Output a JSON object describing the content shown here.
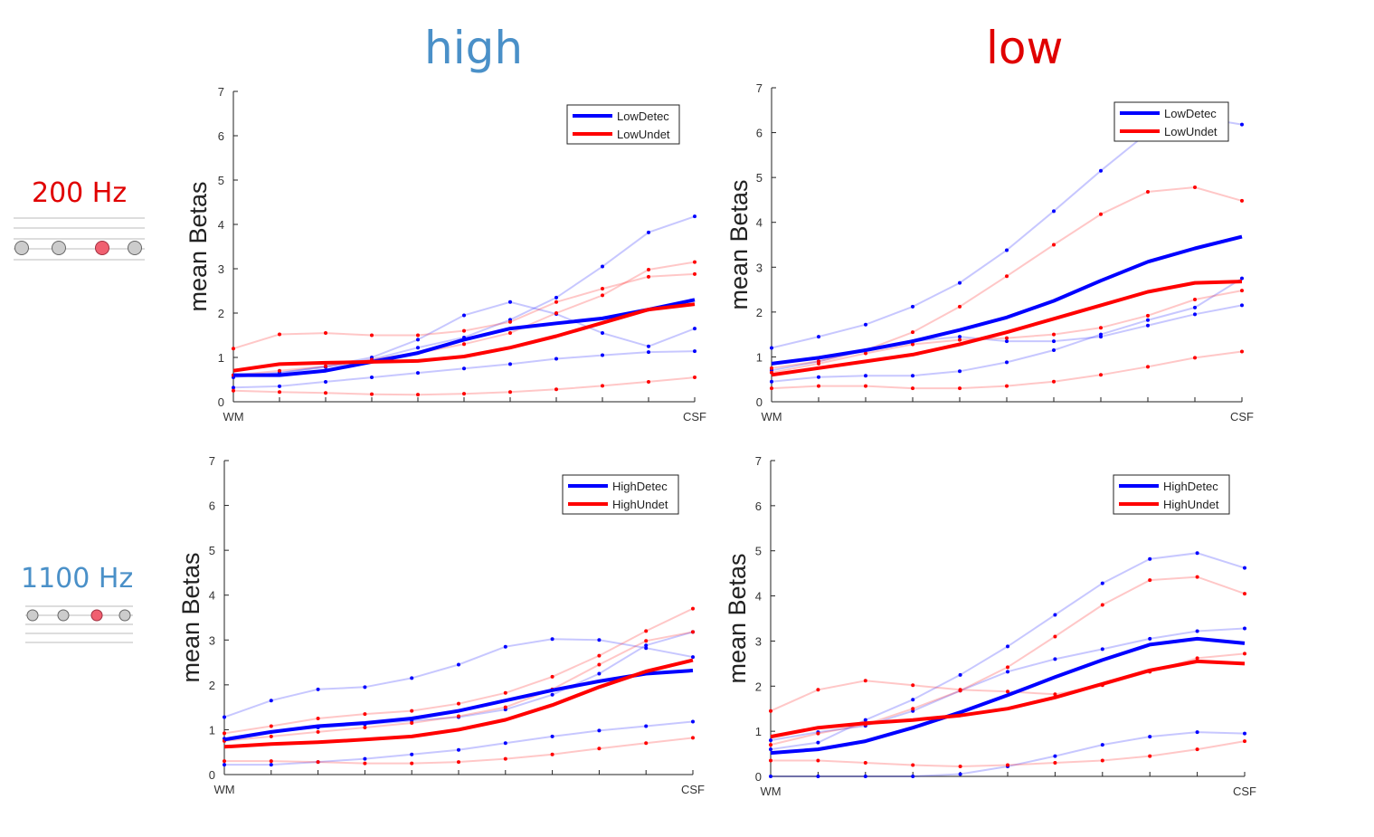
{
  "column_titles": {
    "high": "high",
    "low": "low"
  },
  "row_labels": {
    "top": "200 Hz",
    "bottom": "1100 Hz"
  },
  "colors": {
    "blue": "#0000ff",
    "red": "#ff0000",
    "high_title": "#4a90c8",
    "low_title": "#e00000",
    "label_200": "#e00000",
    "label_1100": "#4a90c8",
    "staff_line": "#bbbbbb",
    "note_gray": "#cccccc",
    "note_red": "#f06070"
  },
  "icon_names": {
    "staff_200": "music-staff-icon",
    "staff_1100": "music-staff-icon"
  },
  "chart_data": [
    {
      "id": "high-200",
      "type": "line",
      "ylabel": "mean Betas",
      "ylim": [
        0,
        7
      ],
      "yticks": [
        "0",
        "1",
        "2",
        "3",
        "4",
        "5",
        "6",
        "7"
      ],
      "xtick_labels": {
        "first": "WM",
        "last": "CSF"
      },
      "x": [
        1,
        2,
        3,
        4,
        5,
        6,
        7,
        8,
        9,
        10,
        11
      ],
      "legend": [
        "LowDetec",
        "LowUndet"
      ],
      "series": [
        {
          "name": "LowDetec",
          "color": "blue",
          "width": "bold",
          "values": [
            0.6,
            0.6,
            0.7,
            0.9,
            1.1,
            1.4,
            1.65,
            1.77,
            1.88,
            2.08,
            2.3
          ]
        },
        {
          "name": "LowUndet",
          "color": "red",
          "width": "bold",
          "values": [
            0.7,
            0.85,
            0.88,
            0.9,
            0.92,
            1.02,
            1.22,
            1.48,
            1.78,
            2.08,
            2.2
          ]
        },
        {
          "name": "subject-blue-1",
          "color": "blue",
          "width": "thin",
          "values": [
            0.6,
            0.65,
            0.8,
            1.0,
            1.4,
            1.95,
            2.25,
            1.98,
            1.55,
            1.25,
            1.65
          ]
        },
        {
          "name": "subject-blue-2",
          "color": "blue",
          "width": "thin",
          "values": [
            0.55,
            0.65,
            0.78,
            0.95,
            1.22,
            1.45,
            1.85,
            2.35,
            3.05,
            3.82,
            4.18
          ]
        },
        {
          "name": "subject-blue-3",
          "color": "blue",
          "width": "thin",
          "values": [
            0.32,
            0.35,
            0.45,
            0.55,
            0.65,
            0.75,
            0.85,
            0.97,
            1.05,
            1.12,
            1.14
          ]
        },
        {
          "name": "subject-red-1",
          "color": "red",
          "width": "thin",
          "values": [
            1.2,
            1.52,
            1.55,
            1.5,
            1.5,
            1.6,
            1.8,
            2.25,
            2.55,
            2.82,
            2.88
          ]
        },
        {
          "name": "subject-red-2",
          "color": "red",
          "width": "thin",
          "values": [
            0.6,
            0.7,
            0.8,
            0.95,
            1.1,
            1.3,
            1.55,
            2.0,
            2.4,
            2.98,
            3.15
          ]
        },
        {
          "name": "subject-red-3",
          "color": "red",
          "width": "thin",
          "values": [
            0.25,
            0.22,
            0.2,
            0.17,
            0.16,
            0.18,
            0.22,
            0.28,
            0.36,
            0.45,
            0.55
          ]
        }
      ]
    },
    {
      "id": "low-200",
      "type": "line",
      "ylabel": "mean Betas",
      "ylim": [
        0,
        7
      ],
      "yticks": [
        "0",
        "1",
        "2",
        "3",
        "4",
        "5",
        "6",
        "7"
      ],
      "xtick_labels": {
        "first": "WM",
        "last": "CSF"
      },
      "x": [
        1,
        2,
        3,
        4,
        5,
        6,
        7,
        8,
        9,
        10,
        11
      ],
      "legend": [
        "LowDetec",
        "LowUndet"
      ],
      "series": [
        {
          "name": "LowDetec",
          "color": "blue",
          "width": "bold",
          "values": [
            0.85,
            0.98,
            1.15,
            1.35,
            1.6,
            1.88,
            2.25,
            2.7,
            3.12,
            3.42,
            3.68
          ]
        },
        {
          "name": "LowUndet",
          "color": "red",
          "width": "bold",
          "values": [
            0.6,
            0.75,
            0.9,
            1.05,
            1.28,
            1.55,
            1.85,
            2.15,
            2.45,
            2.65,
            2.68
          ]
        },
        {
          "name": "subject-blue-1",
          "color": "blue",
          "width": "thin",
          "values": [
            1.2,
            1.45,
            1.72,
            2.12,
            2.65,
            3.38,
            4.25,
            5.15,
            6.0,
            6.35,
            6.18
          ]
        },
        {
          "name": "subject-blue-2",
          "color": "blue",
          "width": "thin",
          "values": [
            0.7,
            0.9,
            1.15,
            1.35,
            1.45,
            1.35,
            1.35,
            1.45,
            1.7,
            1.95,
            2.15
          ]
        },
        {
          "name": "subject-blue-3",
          "color": "blue",
          "width": "thin",
          "values": [
            0.45,
            0.55,
            0.58,
            0.58,
            0.68,
            0.88,
            1.15,
            1.5,
            1.82,
            2.1,
            2.75
          ]
        },
        {
          "name": "subject-red-1",
          "color": "red",
          "width": "thin",
          "values": [
            0.75,
            0.9,
            1.15,
            1.55,
            2.12,
            2.8,
            3.5,
            4.18,
            4.68,
            4.78,
            4.48
          ]
        },
        {
          "name": "subject-red-2",
          "color": "red",
          "width": "thin",
          "values": [
            0.65,
            0.85,
            1.08,
            1.28,
            1.38,
            1.42,
            1.5,
            1.65,
            1.92,
            2.28,
            2.48
          ]
        },
        {
          "name": "subject-red-3",
          "color": "red",
          "width": "thin",
          "values": [
            0.3,
            0.35,
            0.35,
            0.3,
            0.3,
            0.35,
            0.45,
            0.6,
            0.78,
            0.98,
            1.12
          ]
        }
      ]
    },
    {
      "id": "high-1100",
      "type": "line",
      "ylabel": "mean Betas",
      "ylim": [
        0,
        7
      ],
      "yticks": [
        "0",
        "1",
        "2",
        "3",
        "4",
        "5",
        "6",
        "7"
      ],
      "xtick_labels": {
        "first": "WM",
        "last": "CSF"
      },
      "x": [
        1,
        2,
        3,
        4,
        5,
        6,
        7,
        8,
        9,
        10,
        11
      ],
      "legend": [
        "HighDetec",
        "HighUndet"
      ],
      "series": [
        {
          "name": "HighDetec",
          "color": "blue",
          "width": "bold",
          "values": [
            0.78,
            0.95,
            1.08,
            1.15,
            1.25,
            1.42,
            1.65,
            1.88,
            2.08,
            2.25,
            2.32
          ]
        },
        {
          "name": "HighUndet",
          "color": "red",
          "width": "bold",
          "values": [
            0.62,
            0.68,
            0.72,
            0.78,
            0.85,
            1.0,
            1.22,
            1.55,
            1.95,
            2.3,
            2.55
          ]
        },
        {
          "name": "subject-blue-1",
          "color": "blue",
          "width": "thin",
          "values": [
            1.28,
            1.65,
            1.9,
            1.95,
            2.15,
            2.45,
            2.85,
            3.02,
            3.0,
            2.82,
            2.62
          ]
        },
        {
          "name": "subject-blue-2",
          "color": "blue",
          "width": "thin",
          "values": [
            0.8,
            0.95,
            1.05,
            1.12,
            1.2,
            1.28,
            1.45,
            1.78,
            2.25,
            2.88,
            3.18
          ]
        },
        {
          "name": "subject-blue-3",
          "color": "blue",
          "width": "thin",
          "values": [
            0.22,
            0.22,
            0.28,
            0.35,
            0.45,
            0.55,
            0.7,
            0.85,
            0.98,
            1.08,
            1.18
          ]
        },
        {
          "name": "subject-red-1",
          "color": "red",
          "width": "thin",
          "values": [
            0.92,
            1.08,
            1.25,
            1.35,
            1.42,
            1.58,
            1.82,
            2.18,
            2.65,
            3.2,
            3.7
          ]
        },
        {
          "name": "subject-red-2",
          "color": "red",
          "width": "thin",
          "values": [
            0.75,
            0.85,
            0.95,
            1.05,
            1.15,
            1.3,
            1.5,
            1.9,
            2.45,
            2.98,
            3.18
          ]
        },
        {
          "name": "subject-red-3",
          "color": "red",
          "width": "thin",
          "values": [
            0.3,
            0.3,
            0.28,
            0.25,
            0.25,
            0.28,
            0.35,
            0.45,
            0.58,
            0.7,
            0.82
          ]
        }
      ]
    },
    {
      "id": "low-1100",
      "type": "line",
      "ylabel": "mean Betas",
      "ylim": [
        0,
        7
      ],
      "yticks": [
        "0",
        "1",
        "2",
        "3",
        "4",
        "5",
        "6",
        "7"
      ],
      "xtick_labels": {
        "first": "WM",
        "last": "CSF"
      },
      "x": [
        1,
        2,
        3,
        4,
        5,
        6,
        7,
        8,
        9,
        10,
        11
      ],
      "legend": [
        "HighDetec",
        "HighUndet"
      ],
      "series": [
        {
          "name": "HighDetec",
          "color": "blue",
          "width": "bold",
          "values": [
            0.52,
            0.6,
            0.78,
            1.08,
            1.42,
            1.8,
            2.2,
            2.58,
            2.92,
            3.05,
            2.95
          ]
        },
        {
          "name": "HighUndet",
          "color": "red",
          "width": "bold",
          "values": [
            0.88,
            1.08,
            1.18,
            1.25,
            1.35,
            1.5,
            1.75,
            2.05,
            2.35,
            2.55,
            2.5
          ]
        },
        {
          "name": "subject-blue-1",
          "color": "blue",
          "width": "thin",
          "values": [
            0.6,
            0.75,
            1.25,
            1.7,
            2.25,
            2.88,
            3.58,
            4.28,
            4.82,
            4.95,
            4.62
          ]
        },
        {
          "name": "subject-blue-2",
          "color": "blue",
          "width": "thin",
          "values": [
            0.8,
            0.98,
            1.12,
            1.45,
            1.9,
            2.32,
            2.6,
            2.82,
            3.05,
            3.22,
            3.28
          ]
        },
        {
          "name": "subject-blue-3",
          "color": "blue",
          "width": "thin",
          "values": [
            0.0,
            0.0,
            0.0,
            0.0,
            0.05,
            0.22,
            0.45,
            0.7,
            0.88,
            0.98,
            0.95
          ]
        },
        {
          "name": "subject-red-1",
          "color": "red",
          "width": "thin",
          "values": [
            1.45,
            1.92,
            2.12,
            2.02,
            1.92,
            1.88,
            1.82,
            2.02,
            2.32,
            2.62,
            2.72
          ]
        },
        {
          "name": "subject-red-2",
          "color": "red",
          "width": "thin",
          "values": [
            0.7,
            0.95,
            1.15,
            1.5,
            1.9,
            2.42,
            3.1,
            3.8,
            4.35,
            4.42,
            4.05
          ]
        },
        {
          "name": "subject-red-3",
          "color": "red",
          "width": "thin",
          "values": [
            0.35,
            0.35,
            0.3,
            0.25,
            0.22,
            0.25,
            0.3,
            0.35,
            0.45,
            0.6,
            0.78
          ]
        }
      ]
    }
  ]
}
